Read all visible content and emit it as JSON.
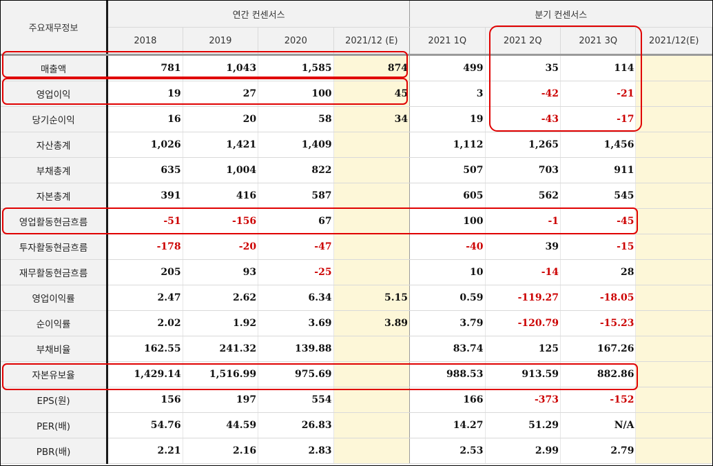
{
  "header": {
    "corner_label": "주요재무정보",
    "annual_group_label": "연간 컨센서스",
    "quarter_group_label": "분기 컨센서스",
    "annual_periods": [
      "2018",
      "2019",
      "2020",
      "2021/12 (E)"
    ],
    "quarter_periods": [
      "2021 1Q",
      "2021 2Q",
      "2021 3Q",
      "2021/12(E)"
    ]
  },
  "rows": [
    {
      "label": "매출액",
      "values": [
        "781",
        "1,043",
        "1,585",
        "874",
        "499",
        "35",
        "114",
        ""
      ]
    },
    {
      "label": "영업이익",
      "values": [
        "19",
        "27",
        "100",
        "45",
        "3",
        "-42",
        "-21",
        ""
      ]
    },
    {
      "label": "당기순이익",
      "values": [
        "16",
        "20",
        "58",
        "34",
        "19",
        "-43",
        "-17",
        ""
      ]
    },
    {
      "label": "자산총계",
      "values": [
        "1,026",
        "1,421",
        "1,409",
        "",
        "1,112",
        "1,265",
        "1,456",
        ""
      ]
    },
    {
      "label": "부채총계",
      "values": [
        "635",
        "1,004",
        "822",
        "",
        "507",
        "703",
        "911",
        ""
      ]
    },
    {
      "label": "자본총계",
      "values": [
        "391",
        "416",
        "587",
        "",
        "605",
        "562",
        "545",
        ""
      ]
    },
    {
      "label": "영업활동현금흐름",
      "values": [
        "-51",
        "-156",
        "67",
        "",
        "100",
        "-1",
        "-45",
        ""
      ]
    },
    {
      "label": "투자활동현금흐름",
      "values": [
        "-178",
        "-20",
        "-47",
        "",
        "-40",
        "39",
        "-15",
        ""
      ]
    },
    {
      "label": "재무활동현금흐름",
      "values": [
        "205",
        "93",
        "-25",
        "",
        "10",
        "-14",
        "28",
        ""
      ]
    },
    {
      "label": "영업이익률",
      "values": [
        "2.47",
        "2.62",
        "6.34",
        "5.15",
        "0.59",
        "-119.27",
        "-18.05",
        ""
      ]
    },
    {
      "label": "순이익률",
      "values": [
        "2.02",
        "1.92",
        "3.69",
        "3.89",
        "3.79",
        "-120.79",
        "-15.23",
        ""
      ]
    },
    {
      "label": "부채비율",
      "values": [
        "162.55",
        "241.32",
        "139.88",
        "",
        "83.74",
        "125",
        "167.26",
        ""
      ]
    },
    {
      "label": "자본유보율",
      "values": [
        "1,429.14",
        "1,516.99",
        "975.69",
        "",
        "988.53",
        "913.59",
        "882.86",
        ""
      ]
    },
    {
      "label": "EPS(원)",
      "values": [
        "156",
        "197",
        "554",
        "",
        "166",
        "-373",
        "-152",
        ""
      ]
    },
    {
      "label": "PER(배)",
      "values": [
        "54.76",
        "44.59",
        "26.83",
        "",
        "14.27",
        "51.29",
        "N/A",
        ""
      ]
    },
    {
      "label": "PBR(배)",
      "values": [
        "2.21",
        "2.16",
        "2.83",
        "",
        "2.53",
        "2.99",
        "2.79",
        ""
      ]
    }
  ],
  "colors": {
    "negative": "#cc0000",
    "highlight_box": "#e00000",
    "estimate_bg": "#fdf7d8",
    "header_bg": "#f2f2f2"
  }
}
